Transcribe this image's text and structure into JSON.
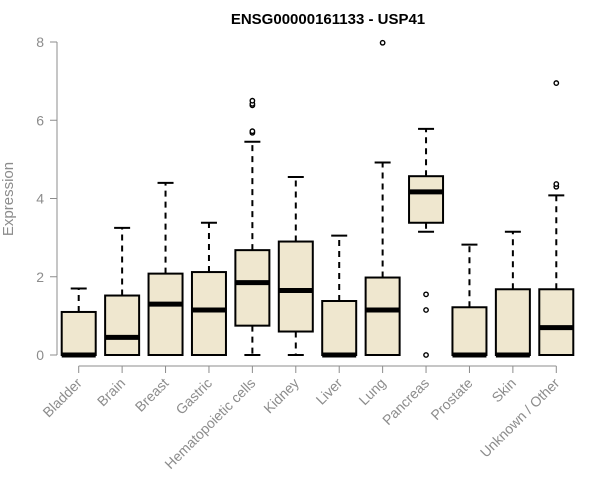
{
  "chart_data": {
    "type": "box",
    "title": "ENSG00000161133 - USP41",
    "ylabel": "Expression",
    "ylim": [
      0,
      8
    ],
    "yticks": [
      0,
      2,
      4,
      6,
      8
    ],
    "box_fill": "#efe7cf",
    "outline_color": "#000000",
    "axis_color": "#8c8c8c",
    "categories": [
      "Bladder",
      "Brain",
      "Breast",
      "Gastric",
      "Hematopoietic cells",
      "Kidney",
      "Liver",
      "Lung",
      "Pancreas",
      "Prostate",
      "Skin",
      "Unknown / Other"
    ],
    "boxes": [
      {
        "min": 0,
        "q1": 0,
        "median": 0,
        "q3": 1.1,
        "max": 1.7,
        "outliers": []
      },
      {
        "min": 0,
        "q1": 0,
        "median": 0.45,
        "q3": 1.52,
        "max": 3.25,
        "outliers": []
      },
      {
        "min": 0,
        "q1": 0,
        "median": 1.3,
        "q3": 2.08,
        "max": 4.4,
        "outliers": []
      },
      {
        "min": 0,
        "q1": 0,
        "median": 1.15,
        "q3": 2.12,
        "max": 3.38,
        "outliers": []
      },
      {
        "min": 0,
        "q1": 0.75,
        "median": 1.85,
        "q3": 2.68,
        "max": 5.45,
        "outliers": [
          5.68,
          5.72,
          6.38,
          6.42,
          6.5
        ]
      },
      {
        "min": 0,
        "q1": 0.6,
        "median": 1.65,
        "q3": 2.9,
        "max": 4.55,
        "outliers": []
      },
      {
        "min": 0,
        "q1": 0,
        "median": 0,
        "q3": 1.38,
        "max": 3.05,
        "outliers": []
      },
      {
        "min": 0,
        "q1": 0,
        "median": 1.15,
        "q3": 1.98,
        "max": 4.92,
        "outliers": [
          7.98
        ]
      },
      {
        "min": 3.15,
        "q1": 3.38,
        "median": 4.17,
        "q3": 4.57,
        "max": 5.78,
        "outliers": [
          0,
          1.15,
          1.55
        ]
      },
      {
        "min": 0,
        "q1": 0,
        "median": 0,
        "q3": 1.22,
        "max": 2.82,
        "outliers": []
      },
      {
        "min": 0,
        "q1": 0,
        "median": 0,
        "q3": 1.68,
        "max": 3.15,
        "outliers": []
      },
      {
        "min": 0,
        "q1": 0,
        "median": 0.7,
        "q3": 1.68,
        "max": 4.08,
        "outliers": [
          4.3,
          4.37,
          6.95
        ]
      }
    ]
  }
}
